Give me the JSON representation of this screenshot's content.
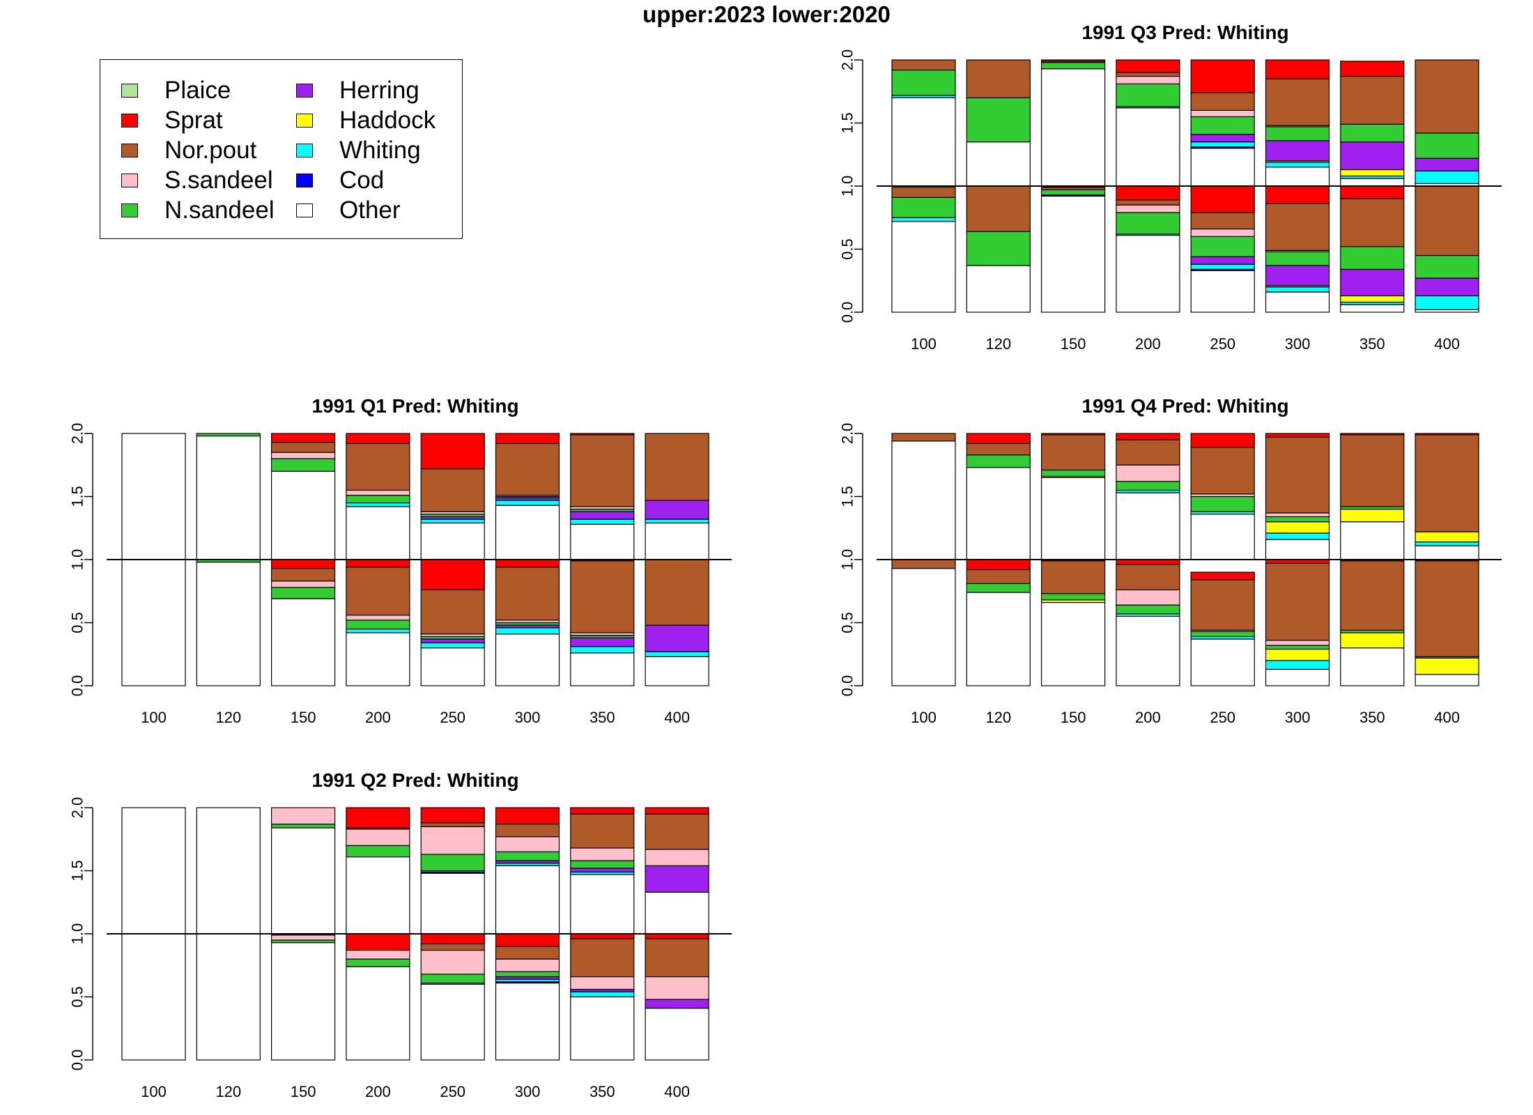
{
  "title": "upper:2023  lower:2020",
  "legend": {
    "items": [
      {
        "label": "Plaice",
        "color": "#b2e39a"
      },
      {
        "label": "Sprat",
        "color": "#ff0000"
      },
      {
        "label": "Nor.pout",
        "color": "#b05a2a"
      },
      {
        "label": "S.sandeel",
        "color": "#ffc0cb"
      },
      {
        "label": "N.sandeel",
        "color": "#32cd32"
      },
      {
        "label": "Herring",
        "color": "#a020f0"
      },
      {
        "label": "Haddock",
        "color": "#ffff00"
      },
      {
        "label": "Whiting",
        "color": "#00ffff"
      },
      {
        "label": "Cod",
        "color": "#0000ff"
      },
      {
        "label": "Other",
        "color": "#ffffff"
      }
    ]
  },
  "chart_data": [
    {
      "type": "bar",
      "title": "1991 Q3  Pred: Whiting",
      "categories": [
        "100",
        "120",
        "150",
        "200",
        "250",
        "300",
        "350",
        "400"
      ],
      "ylim": [
        0,
        2
      ],
      "yticks": [
        "0.0",
        "0.5",
        "1.0",
        "1.5",
        "2.0"
      ],
      "series_order": [
        "Other",
        "Cod",
        "Whiting",
        "Haddock",
        "Herring",
        "N.sandeel",
        "S.sandeel",
        "Nor.pout",
        "Sprat",
        "Plaice"
      ],
      "upper_2023": [
        {
          "Other": 0.7,
          "Whiting": 0.02,
          "N.sandeel": 0.2,
          "Nor.pout": 0.08
        },
        {
          "Other": 0.35,
          "N.sandeel": 0.35,
          "Nor.pout": 0.3
        },
        {
          "Other": 0.93,
          "Nor.pout": 0.01,
          "N.sandeel": 0.05,
          "Sprat": 0.01
        },
        {
          "Other": 0.62,
          "Whiting": 0.01,
          "N.sandeel": 0.18,
          "S.sandeel": 0.06,
          "Nor.pout": 0.03,
          "Sprat": 0.1
        },
        {
          "Other": 0.3,
          "Whiting": 0.04,
          "Cod": 0.01,
          "Herring": 0.06,
          "N.sandeel": 0.14,
          "S.sandeel": 0.05,
          "Nor.pout": 0.14,
          "Sprat": 0.26
        },
        {
          "Other": 0.15,
          "Whiting": 0.04,
          "Haddock": 0.01,
          "S.sandeel": 0.01,
          "Herring": 0.16,
          "N.sandeel": 0.11,
          "Nor.pout": 0.37,
          "Sprat": 0.15
        },
        {
          "Other": 0.06,
          "Whiting": 0.02,
          "Haddock": 0.05,
          "Herring": 0.22,
          "N.sandeel": 0.14,
          "Nor.pout": 0.38,
          "Sprat": 0.12
        },
        {
          "Other": 0.02,
          "Whiting": 0.1,
          "Herring": 0.1,
          "N.sandeel": 0.2,
          "Nor.pout": 0.58
        }
      ],
      "lower_2020": [
        {
          "Other": 0.72,
          "Whiting": 0.03,
          "N.sandeel": 0.16,
          "Nor.pout": 0.08
        },
        {
          "Other": 0.37,
          "N.sandeel": 0.27,
          "Nor.pout": 0.36
        },
        {
          "Other": 0.92,
          "Cod": 0.01,
          "N.sandeel": 0.04,
          "Nor.pout": 0.02,
          "Sprat": 0.01
        },
        {
          "Other": 0.61,
          "Whiting": 0.01,
          "N.sandeel": 0.17,
          "S.sandeel": 0.06,
          "Nor.pout": 0.04,
          "Sprat": 0.11
        },
        {
          "Other": 0.33,
          "Whiting": 0.04,
          "Cod": 0.01,
          "Herring": 0.06,
          "N.sandeel": 0.16,
          "S.sandeel": 0.06,
          "Nor.pout": 0.13,
          "Sprat": 0.21
        },
        {
          "Other": 0.16,
          "Whiting": 0.04,
          "Haddock": 0.01,
          "S.sandeel": 0.01,
          "Herring": 0.16,
          "N.sandeel": 0.11,
          "Nor.pout": 0.37,
          "Sprat": 0.14
        },
        {
          "Other": 0.06,
          "Whiting": 0.02,
          "Haddock": 0.05,
          "Herring": 0.21,
          "N.sandeel": 0.18,
          "Nor.pout": 0.38,
          "Sprat": 0.1
        },
        {
          "Other": 0.02,
          "Whiting": 0.11,
          "Herring": 0.14,
          "N.sandeel": 0.18,
          "Nor.pout": 0.55
        }
      ]
    },
    {
      "type": "bar",
      "title": "1991 Q1  Pred: Whiting",
      "categories": [
        "100",
        "120",
        "150",
        "200",
        "250",
        "300",
        "350",
        "400"
      ],
      "ylim": [
        0,
        2
      ],
      "yticks": [
        "0.0",
        "0.5",
        "1.0",
        "1.5",
        "2.0"
      ],
      "series_order": [
        "Other",
        "Cod",
        "Whiting",
        "Haddock",
        "Herring",
        "N.sandeel",
        "S.sandeel",
        "Nor.pout",
        "Sprat",
        "Plaice"
      ],
      "upper_2023": [
        {
          "Other": 1.0
        },
        {
          "Other": 0.98,
          "N.sandeel": 0.02
        },
        {
          "Other": 0.7,
          "N.sandeel": 0.1,
          "S.sandeel": 0.05,
          "Nor.pout": 0.08,
          "Sprat": 0.07
        },
        {
          "Other": 0.42,
          "Whiting": 0.03,
          "N.sandeel": 0.06,
          "S.sandeel": 0.04,
          "Nor.pout": 0.37,
          "Sprat": 0.08
        },
        {
          "Other": 0.29,
          "Whiting": 0.03,
          "Herring": 0.02,
          "N.sandeel": 0.02,
          "S.sandeel": 0.02,
          "Nor.pout": 0.34,
          "Sprat": 0.28
        },
        {
          "Other": 0.43,
          "Whiting": 0.04,
          "Herring": 0.02,
          "N.sandeel": 0.01,
          "S.sandeel": 0.01,
          "Nor.pout": 0.41,
          "Sprat": 0.08
        },
        {
          "Other": 0.28,
          "Whiting": 0.04,
          "Herring": 0.06,
          "N.sandeel": 0.02,
          "S.sandeel": 0.02,
          "Nor.pout": 0.57,
          "Sprat": 0.01
        },
        {
          "Other": 0.29,
          "Whiting": 0.03,
          "Herring": 0.15,
          "Nor.pout": 0.53
        }
      ],
      "lower_2020": [
        {
          "Other": 1.0
        },
        {
          "Other": 0.98,
          "N.sandeel": 0.02
        },
        {
          "Other": 0.69,
          "N.sandeel": 0.09,
          "S.sandeel": 0.05,
          "Nor.pout": 0.1,
          "Sprat": 0.07
        },
        {
          "Other": 0.42,
          "Whiting": 0.03,
          "N.sandeel": 0.07,
          "S.sandeel": 0.04,
          "Nor.pout": 0.38,
          "Sprat": 0.06
        },
        {
          "Other": 0.3,
          "Whiting": 0.04,
          "Herring": 0.03,
          "N.sandeel": 0.02,
          "S.sandeel": 0.02,
          "Nor.pout": 0.35,
          "Sprat": 0.24
        },
        {
          "Other": 0.41,
          "Whiting": 0.05,
          "Herring": 0.02,
          "N.sandeel": 0.02,
          "S.sandeel": 0.02,
          "Nor.pout": 0.42,
          "Sprat": 0.06
        },
        {
          "Other": 0.26,
          "Whiting": 0.05,
          "Herring": 0.07,
          "N.sandeel": 0.02,
          "S.sandeel": 0.02,
          "Nor.pout": 0.57,
          "Sprat": 0.01
        },
        {
          "Other": 0.23,
          "Whiting": 0.04,
          "Herring": 0.21,
          "Nor.pout": 0.52
        }
      ]
    },
    {
      "type": "bar",
      "title": "1991 Q4  Pred: Whiting",
      "categories": [
        "100",
        "120",
        "150",
        "200",
        "250",
        "300",
        "350",
        "400"
      ],
      "ylim": [
        0,
        2
      ],
      "yticks": [
        "0.0",
        "0.5",
        "1.0",
        "1.5",
        "2.0"
      ],
      "series_order": [
        "Other",
        "Cod",
        "Whiting",
        "Haddock",
        "Herring",
        "N.sandeel",
        "S.sandeel",
        "Nor.pout",
        "Sprat",
        "Plaice"
      ],
      "upper_2023": [
        {
          "Other": 0.94,
          "Nor.pout": 0.06
        },
        {
          "Other": 0.73,
          "N.sandeel": 0.1,
          "Nor.pout": 0.09,
          "Sprat": 0.08
        },
        {
          "Other": 0.65,
          "Haddock": 0.01,
          "N.sandeel": 0.05,
          "Nor.pout": 0.28,
          "Sprat": 0.01
        },
        {
          "Other": 0.53,
          "Whiting": 0.02,
          "N.sandeel": 0.07,
          "S.sandeel": 0.13,
          "Nor.pout": 0.2,
          "Sprat": 0.05
        },
        {
          "Other": 0.36,
          "Whiting": 0.02,
          "N.sandeel": 0.12,
          "S.sandeel": 0.02,
          "Nor.pout": 0.37,
          "Sprat": 0.11
        },
        {
          "Other": 0.16,
          "Whiting": 0.05,
          "Haddock": 0.09,
          "N.sandeel": 0.04,
          "S.sandeel": 0.03,
          "Nor.pout": 0.6,
          "Sprat": 0.03
        },
        {
          "Other": 0.3,
          "Haddock": 0.1,
          "N.sandeel": 0.02,
          "Nor.pout": 0.57,
          "Sprat": 0.01
        },
        {
          "Other": 0.11,
          "Whiting": 0.03,
          "Haddock": 0.08,
          "Nor.pout": 0.77,
          "Sprat": 0.01
        }
      ],
      "lower_2020": [
        {
          "Other": 0.93,
          "Nor.pout": 0.07
        },
        {
          "Other": 0.74,
          "N.sandeel": 0.07,
          "Nor.pout": 0.11,
          "Sprat": 0.08
        },
        {
          "Other": 0.66,
          "Haddock": 0.02,
          "N.sandeel": 0.05,
          "Nor.pout": 0.26,
          "Sprat": 0.01
        },
        {
          "Other": 0.55,
          "Whiting": 0.02,
          "N.sandeel": 0.07,
          "S.sandeel": 0.12,
          "Nor.pout": 0.2,
          "Sprat": 0.04
        },
        {
          "Other": 0.37,
          "Whiting": 0.02,
          "N.sandeel": 0.04,
          "S.sandeel": 0.01,
          "Nor.pout": 0.4,
          "Sprat": 0.06
        },
        {
          "Other": 0.13,
          "Whiting": 0.07,
          "Haddock": 0.09,
          "N.sandeel": 0.03,
          "S.sandeel": 0.04,
          "Nor.pout": 0.61,
          "Sprat": 0.03
        },
        {
          "Other": 0.3,
          "Haddock": 0.12,
          "N.sandeel": 0.02,
          "Nor.pout": 0.55,
          "Sprat": 0.01
        },
        {
          "Other": 0.09,
          "N.sandeel": 0.01,
          "Haddock": 0.13,
          "Nor.pout": 0.76,
          "Sprat": 0.01
        }
      ]
    },
    {
      "type": "bar",
      "title": "1991 Q2  Pred: Whiting",
      "categories": [
        "100",
        "120",
        "150",
        "200",
        "250",
        "300",
        "350",
        "400"
      ],
      "ylim": [
        0,
        2
      ],
      "yticks": [
        "0.0",
        "0.5",
        "1.0",
        "1.5",
        "2.0"
      ],
      "series_order": [
        "Other",
        "Cod",
        "Whiting",
        "Haddock",
        "Herring",
        "N.sandeel",
        "S.sandeel",
        "Nor.pout",
        "Sprat",
        "Plaice"
      ],
      "upper_2023": [
        {
          "Other": 1.0
        },
        {
          "Other": 1.0
        },
        {
          "Other": 0.84,
          "N.sandeel": 0.03,
          "S.sandeel": 0.13
        },
        {
          "Other": 0.61,
          "N.sandeel": 0.09,
          "S.sandeel": 0.13,
          "Nor.pout": 0.01,
          "Sprat": 0.16
        },
        {
          "Other": 0.48,
          "Cod": 0.01,
          "Whiting": 0.01,
          "N.sandeel": 0.13,
          "S.sandeel": 0.22,
          "Nor.pout": 0.03,
          "Sprat": 0.12
        },
        {
          "Other": 0.54,
          "Whiting": 0.02,
          "Herring": 0.02,
          "N.sandeel": 0.07,
          "S.sandeel": 0.12,
          "Nor.pout": 0.1,
          "Sprat": 0.13
        },
        {
          "Other": 0.47,
          "Whiting": 0.02,
          "Herring": 0.03,
          "N.sandeel": 0.06,
          "S.sandeel": 0.1,
          "Nor.pout": 0.27,
          "Sprat": 0.05
        },
        {
          "Other": 0.33,
          "Herring": 0.21,
          "S.sandeel": 0.13,
          "Nor.pout": 0.28,
          "Sprat": 0.05
        }
      ],
      "lower_2020": [
        {
          "Other": 1.0
        },
        {
          "Other": 1.0
        },
        {
          "Other": 0.93,
          "N.sandeel": 0.02,
          "S.sandeel": 0.04,
          "Nor.pout": 0.01
        },
        {
          "Other": 0.74,
          "N.sandeel": 0.06,
          "S.sandeel": 0.07,
          "Sprat": 0.13
        },
        {
          "Other": 0.6,
          "Whiting": 0.01,
          "N.sandeel": 0.07,
          "S.sandeel": 0.19,
          "Nor.pout": 0.05,
          "Sprat": 0.08
        },
        {
          "Other": 0.61,
          "Whiting": 0.02,
          "Cod": 0.01,
          "Herring": 0.02,
          "N.sandeel": 0.04,
          "S.sandeel": 0.1,
          "Nor.pout": 0.1,
          "Sprat": 0.1
        },
        {
          "Other": 0.5,
          "Whiting": 0.04,
          "Herring": 0.02,
          "S.sandeel": 0.1,
          "Nor.pout": 0.3,
          "Sprat": 0.04
        },
        {
          "Other": 0.41,
          "Herring": 0.07,
          "S.sandeel": 0.18,
          "Nor.pout": 0.3,
          "Sprat": 0.04
        }
      ]
    }
  ]
}
